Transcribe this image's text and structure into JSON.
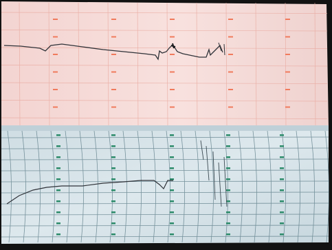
{
  "scene": {
    "subject": "chart-recorder-paper",
    "colors": {
      "frame": "#121212",
      "upper_paper": "#f4d9d6",
      "upper_grid": "#e7a49a",
      "upper_marks": "#f07a5c",
      "lower_paper": "#d8e4ea",
      "lower_grid": "#5d7d88",
      "lower_marks": "#2c8b6a",
      "trace": "#2f3238"
    }
  }
}
